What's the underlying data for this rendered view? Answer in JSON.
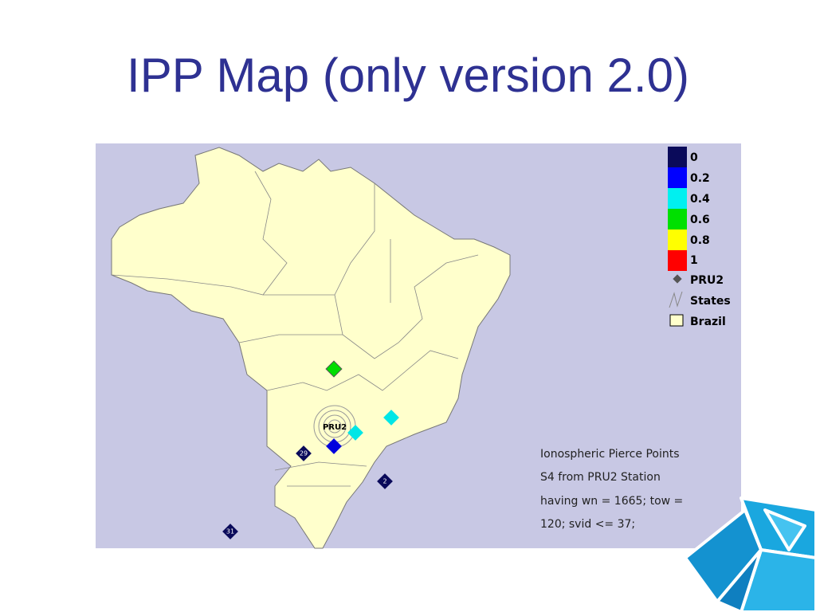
{
  "title": "IPP Map (only version 2.0)",
  "legend": {
    "items": [
      "0",
      "0.2",
      "0.4",
      "0.6",
      "0.8",
      "1",
      "PRU2",
      "States",
      "Brazil"
    ]
  },
  "station_label": "PRU2",
  "markers": [
    "29",
    "2",
    "31"
  ],
  "note": {
    "lines": [
      "Ionospheric Pierce Points",
      "S4 from PRU2 Station",
      "having  wn = 1665; tow =",
      "120;  svid <= 37;"
    ]
  }
}
